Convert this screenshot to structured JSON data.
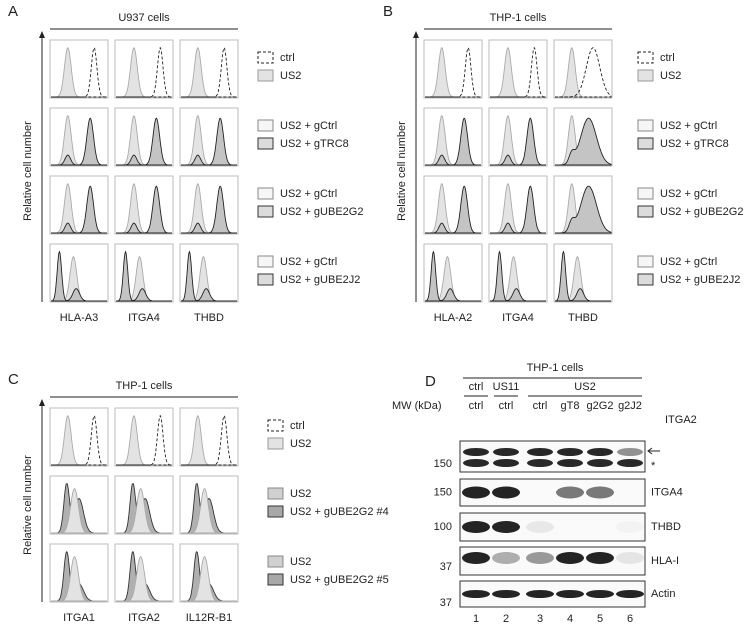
{
  "panels": [
    {
      "label": "A",
      "header": "U937 cells",
      "y_axis_label": "Relative cell number",
      "columns": [
        "HLA-A3",
        "ITGA4",
        "THBD"
      ],
      "legend_rows": [
        [
          "ctrl",
          "US2"
        ],
        [
          "US2 + gCtrl",
          "US2 + gTRC8"
        ],
        [
          "US2 + gCtrl",
          "US2 + gUBE2G2"
        ],
        [
          "US2 + gCtrl",
          "US2 + gUBE2J2"
        ]
      ]
    },
    {
      "label": "B",
      "header": "THP-1 cells",
      "y_axis_label": "Relative cell number",
      "columns": [
        "HLA-A2",
        "ITGA4",
        "THBD"
      ],
      "legend_rows": [
        [
          "ctrl",
          "US2"
        ],
        [
          "US2 + gCtrl",
          "US2 + gTRC8"
        ],
        [
          "US2 + gCtrl",
          "US2 + gUBE2G2"
        ],
        [
          "US2 + gCtrl",
          "US2 + gUBE2J2"
        ]
      ]
    },
    {
      "label": "C",
      "header": "THP-1 cells",
      "y_axis_label": "Relative cell number",
      "columns": [
        "ITGA1",
        "ITGA2",
        "IL12R-B1"
      ],
      "legend_rows": [
        [
          "ctrl",
          "US2"
        ],
        [
          "US2",
          "US2 + gUBE2G2 #4"
        ],
        [
          "US2",
          "US2 + gUBE2G2 #5"
        ]
      ]
    }
  ],
  "blot": {
    "label": "D",
    "header": "THP-1 cells",
    "groups": [
      "ctrl",
      "US11",
      "US2"
    ],
    "lanes": [
      "ctrl",
      "ctrl",
      "ctrl",
      "gT8",
      "g2G2",
      "g2J2"
    ],
    "mw_label": "MW (kDa)",
    "rows": [
      {
        "marker": 150,
        "protein": "ITGA2"
      },
      {
        "marker": 150,
        "protein": "ITGA4"
      },
      {
        "marker": 100,
        "protein": "THBD"
      },
      {
        "marker": 37,
        "protein": "HLA-I"
      },
      {
        "marker": 37,
        "protein": "Actin"
      }
    ],
    "asterisk": "*",
    "lane_numbers": [
      1,
      2,
      3,
      4,
      5,
      6
    ]
  }
}
